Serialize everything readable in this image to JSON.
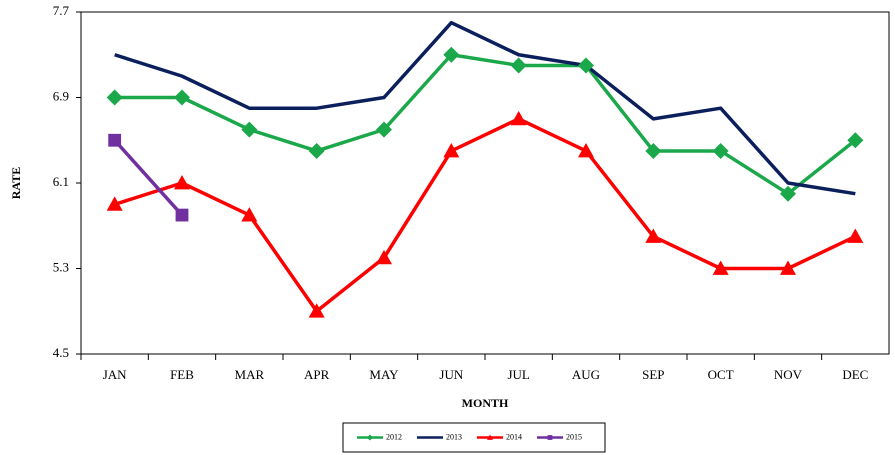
{
  "chart_data": {
    "type": "line",
    "x_label": "MONTH",
    "y_label": "RATE",
    "categories": [
      "JAN",
      "FEB",
      "MAR",
      "APR",
      "MAY",
      "JUN",
      "JUL",
      "AUG",
      "SEP",
      "OCT",
      "NOV",
      "DEC"
    ],
    "series": [
      {
        "name": "2012",
        "color": "#1aa84a",
        "marker": "diamond",
        "values": [
          6.9,
          6.9,
          6.6,
          6.4,
          6.6,
          7.3,
          7.2,
          7.2,
          6.4,
          6.4,
          6.0,
          6.5
        ]
      },
      {
        "name": "2013",
        "color": "#0b1f5c",
        "marker": "none",
        "values": [
          7.3,
          7.1,
          6.8,
          6.8,
          6.9,
          7.6,
          7.3,
          7.2,
          6.7,
          6.8,
          6.1,
          6.0
        ]
      },
      {
        "name": "2014",
        "color": "#ff0000",
        "marker": "triangle",
        "values": [
          5.9,
          6.1,
          5.8,
          4.9,
          5.4,
          6.4,
          6.7,
          6.4,
          5.6,
          5.3,
          5.3,
          5.6
        ]
      },
      {
        "name": "2015",
        "color": "#7030a0",
        "marker": "square",
        "values": [
          6.5,
          5.8,
          null,
          null,
          null,
          null,
          null,
          null,
          null,
          null,
          null,
          null
        ]
      }
    ],
    "ylim": [
      4.5,
      7.7
    ],
    "yticks": [
      4.5,
      5.3,
      6.1,
      6.9,
      7.7
    ],
    "grid": false,
    "legend": "bottom"
  }
}
